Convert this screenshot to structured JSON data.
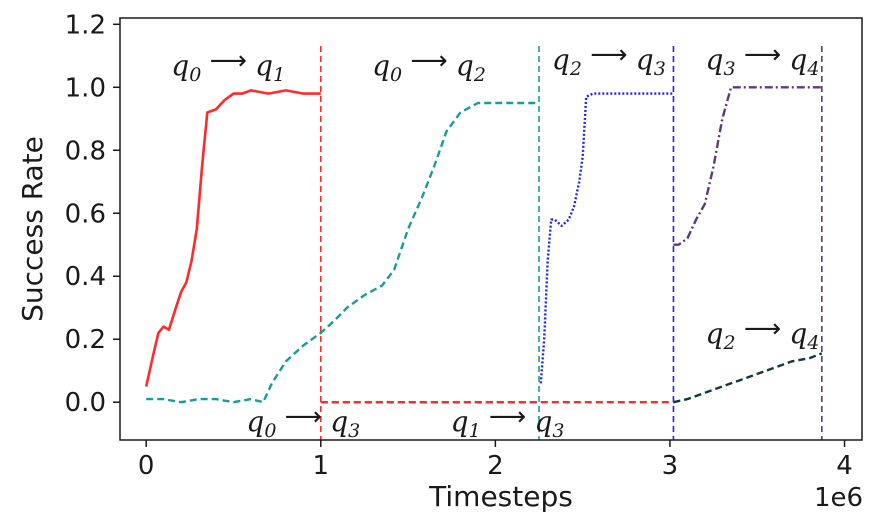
{
  "chart_data": {
    "type": "line",
    "xlabel": "Timesteps",
    "ylabel": "Success Rate",
    "x_multiplier_label": "1e6",
    "xlim": [
      -0.15,
      4.1
    ],
    "ylim": [
      -0.12,
      1.22
    ],
    "xticks": [
      0,
      1,
      2,
      3,
      4
    ],
    "xtick_labels": [
      "0",
      "1",
      "2",
      "3",
      "4"
    ],
    "yticks": [
      0.0,
      0.2,
      0.4,
      0.6,
      0.8,
      1.0,
      1.2
    ],
    "ytick_labels": [
      "0.0",
      "0.2",
      "0.4",
      "0.6",
      "0.8",
      "1.0",
      "1.2"
    ],
    "grid": false,
    "legend": "none",
    "series": [
      {
        "name": "q0→q1",
        "color": "#ff2a2a",
        "dash": "solid",
        "x": [
          0,
          0.04,
          0.07,
          0.1,
          0.13,
          0.17,
          0.2,
          0.23,
          0.26,
          0.29,
          0.32,
          0.35,
          0.4,
          0.45,
          0.5,
          0.55,
          0.6,
          0.7,
          0.8,
          0.9,
          1.0
        ],
        "y": [
          0.05,
          0.15,
          0.22,
          0.24,
          0.23,
          0.3,
          0.35,
          0.38,
          0.45,
          0.55,
          0.75,
          0.92,
          0.93,
          0.96,
          0.98,
          0.98,
          0.99,
          0.98,
          0.99,
          0.98,
          0.98
        ]
      },
      {
        "name": "q0→q2",
        "color": "#1b9a9a",
        "dash": "dashed",
        "x": [
          0,
          0.1,
          0.2,
          0.3,
          0.4,
          0.5,
          0.6,
          0.67,
          0.72,
          0.8,
          0.9,
          1.0,
          1.08,
          1.15,
          1.25,
          1.35,
          1.42,
          1.5,
          1.58,
          1.65,
          1.72,
          1.8,
          1.9,
          2.0,
          2.1,
          2.2,
          2.25
        ],
        "y": [
          0.01,
          0.01,
          0.0,
          0.01,
          0.01,
          0.0,
          0.01,
          0.0,
          0.06,
          0.13,
          0.18,
          0.22,
          0.26,
          0.3,
          0.34,
          0.37,
          0.42,
          0.55,
          0.65,
          0.75,
          0.86,
          0.92,
          0.95,
          0.95,
          0.95,
          0.95,
          0.95
        ]
      },
      {
        "name": "q2→q3",
        "color": "#2222ee",
        "dash": "dotted",
        "x": [
          2.26,
          2.28,
          2.3,
          2.32,
          2.34,
          2.38,
          2.42,
          2.45,
          2.48,
          2.5,
          2.52,
          2.56,
          2.7,
          2.8,
          2.9,
          3.02
        ],
        "y": [
          0.06,
          0.2,
          0.45,
          0.58,
          0.58,
          0.56,
          0.58,
          0.62,
          0.7,
          0.78,
          0.97,
          0.98,
          0.98,
          0.98,
          0.98,
          0.98
        ]
      },
      {
        "name": "q3→q4",
        "color": "#5c3a78",
        "dash": "dashdot",
        "x": [
          3.02,
          3.05,
          3.1,
          3.15,
          3.2,
          3.25,
          3.3,
          3.35,
          3.4,
          3.5,
          3.6,
          3.7,
          3.8,
          3.87
        ],
        "y": [
          0.5,
          0.5,
          0.52,
          0.58,
          0.63,
          0.75,
          0.9,
          1.0,
          1.0,
          1.0,
          1.0,
          1.0,
          1.0,
          1.0
        ]
      },
      {
        "name": "q2→q4",
        "color": "#0e3a3a",
        "dash": "dashed",
        "x": [
          3.02,
          3.1,
          3.2,
          3.3,
          3.4,
          3.5,
          3.6,
          3.7,
          3.8,
          3.87
        ],
        "y": [
          0.0,
          0.01,
          0.03,
          0.05,
          0.07,
          0.09,
          0.11,
          0.13,
          0.14,
          0.155
        ]
      },
      {
        "name": "q0→q3",
        "color": "#1e6fb0",
        "dash": "dashed",
        "x": [
          1.0,
          1.5,
          2.0,
          2.25
        ],
        "y": [
          0.0,
          0.0,
          0.0,
          0.0
        ]
      },
      {
        "name": "q1→q3",
        "color": "#ff2a2a",
        "dash": "dashed",
        "x": [
          1.0,
          1.5,
          2.0,
          2.5,
          3.02
        ],
        "y": [
          0.0,
          0.0,
          0.0,
          0.0,
          0.0
        ]
      }
    ],
    "vlines": [
      {
        "x": 1.0,
        "color": "#ff2a2a"
      },
      {
        "x": 2.25,
        "color": "#1b9a9a"
      },
      {
        "x": 3.02,
        "color": "#2222ee"
      },
      {
        "x": 3.87,
        "color": "#5c3a78"
      }
    ],
    "annotations": [
      {
        "from": "q",
        "from_sub": "0",
        "to": "q",
        "to_sub": "1",
        "x": 0.47,
        "y": 1.07
      },
      {
        "from": "q",
        "from_sub": "0",
        "to": "q",
        "to_sub": "2",
        "x": 1.62,
        "y": 1.07
      },
      {
        "from": "q",
        "from_sub": "2",
        "to": "q",
        "to_sub": "3",
        "x": 2.65,
        "y": 1.09
      },
      {
        "from": "q",
        "from_sub": "3",
        "to": "q",
        "to_sub": "4",
        "x": 3.53,
        "y": 1.09
      },
      {
        "from": "q",
        "from_sub": "2",
        "to": "q",
        "to_sub": "4",
        "x": 3.53,
        "y": 0.22
      },
      {
        "from": "q",
        "from_sub": "0",
        "to": "q",
        "to_sub": "3",
        "x": 0.9,
        "y": -0.06
      },
      {
        "from": "q",
        "from_sub": "1",
        "to": "q",
        "to_sub": "3",
        "x": 2.07,
        "y": -0.06
      }
    ]
  }
}
